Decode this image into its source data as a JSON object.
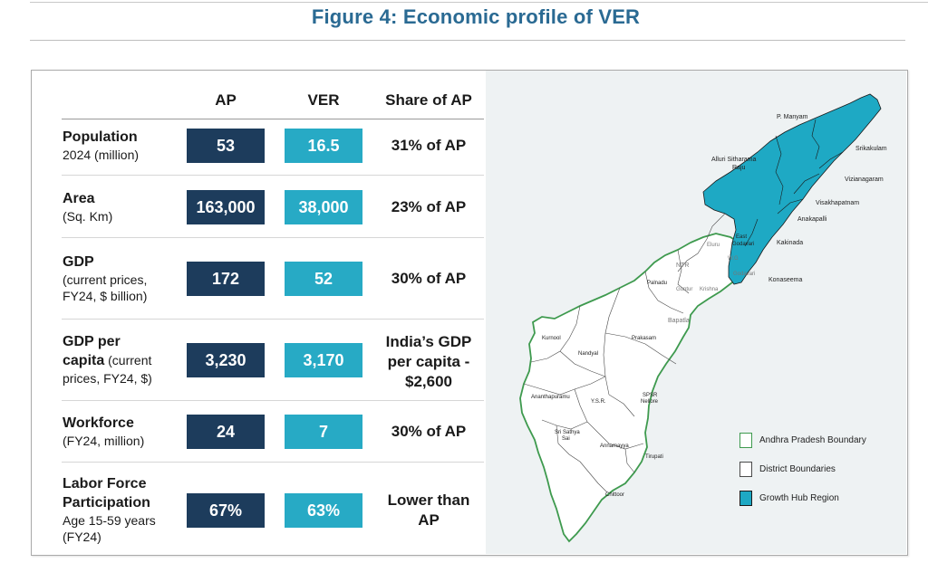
{
  "title": "Figure 4: Economic profile of VER",
  "table": {
    "headers": {
      "col_ap": "AP",
      "col_ver": "VER",
      "col_share": "Share of AP"
    },
    "rows": [
      {
        "label_bold": "Population",
        "label_sub": "2024 (million)",
        "ap": "53",
        "ver": "16.5",
        "share": "31% of AP"
      },
      {
        "label_bold": "Area",
        "label_sub": "(Sq. Km)",
        "ap": "163,000",
        "ver": "38,000",
        "share": "23% of AP"
      },
      {
        "label_bold": "GDP",
        "label_sub1": "(current prices,",
        "label_sub2": "FY24, $ billion)",
        "ap": "172",
        "ver": "52",
        "share": "30% of AP"
      },
      {
        "label_bold1": "GDP per",
        "label_bold2": "capita",
        "label_sub_inline": " (current",
        "label_sub2": "prices, FY24, $)",
        "ap": "3,230",
        "ver": "3,170",
        "share1": "India’s GDP",
        "share2": "per capita -",
        "share3": "$2,600"
      },
      {
        "label_bold": "Workforce",
        "label_sub": "(FY24, million)",
        "ap": "24",
        "ver": "7",
        "share": "30% of AP"
      },
      {
        "label_bold1": "Labor Force",
        "label_bold2": "Participation",
        "label_sub1": "Age 15-59 years",
        "label_sub2": "(FY24)",
        "ap": "67%",
        "ver": "63%",
        "share1": "Lower than",
        "share2": "AP"
      }
    ]
  },
  "map": {
    "colors": {
      "growth_hub": "#1ea9c4",
      "ap_boundary": "#3e9a4e",
      "district": "#4a4a4a",
      "background": "#eef2f3"
    },
    "labels": {
      "p_manyam": "P. Manyam",
      "srikakulam": "Srikakulam",
      "alluri1": "Alluri Sitharama",
      "alluri2": "Raju",
      "vizianagaram": "Vizianagaram",
      "visakhapatnam": "Visakhapatnam",
      "anakapalli": "Anakapalli",
      "east1": "East",
      "east2": "Godavari",
      "kakinada": "Kakinada",
      "eluru": "Eluru",
      "ntr": "NTR",
      "west": "W.G",
      "godavari": "Godavari",
      "konaseema": "Konaseema",
      "palnadu": "Palnadu",
      "guntur": "Guntur",
      "krishna": "Krishna",
      "bapatla": "Bapatla",
      "kurnool": "Kurnool",
      "nandyal": "Nandyal",
      "prakasam": "Prakasam",
      "ananthapuramu": "Ananthapuramu",
      "ysr": "Y.S.R.",
      "spsr1": "SPSR",
      "spsr2": "Nellore",
      "sathya1": "Sri Sathya",
      "sathya2": "Sai",
      "annamayya": "Annamayya",
      "tirupati": "Tirupati",
      "chittoor": "Chittoor"
    },
    "legend": [
      {
        "label": "Andhra Pradesh Boundary",
        "icon": "green-outline-square"
      },
      {
        "label": "District Boundaries",
        "icon": "black-outline-square"
      },
      {
        "label": "Growth Hub Region",
        "icon": "teal-filled-square"
      }
    ]
  }
}
